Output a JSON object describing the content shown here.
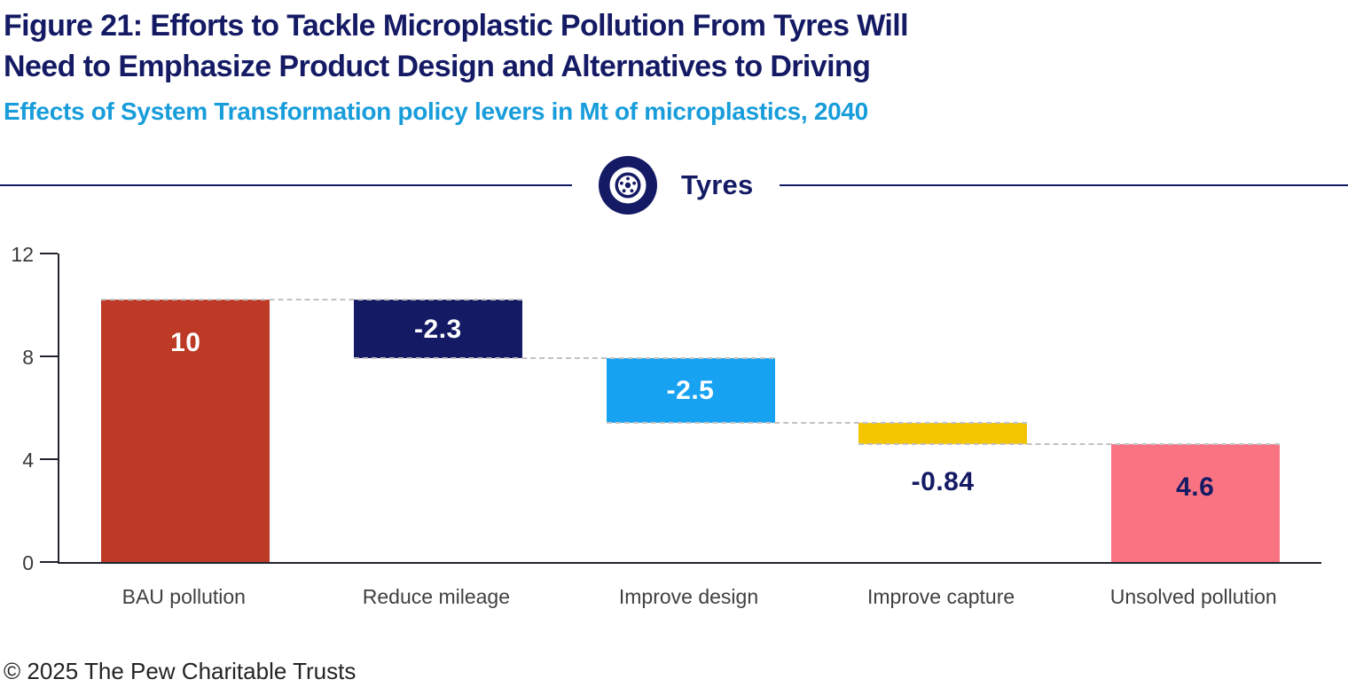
{
  "figure": {
    "title_line1": "Figure 21: Efforts to Tackle Microplastic Pollution From Tyres Will",
    "title_line2": "Need to Emphasize Product Design and Alternatives to Driving",
    "subtitle": "Effects of System Transformation policy levers in Mt of microplastics, 2040",
    "divider_label": "Tyres",
    "footer": "© 2025 The Pew Charitable Trusts"
  },
  "colors": {
    "navy": "#141a64",
    "subtitle_blue": "#189ddb",
    "axis": "#20242c",
    "connector": "#c2c2c2",
    "tick_label": "#3a3a3a",
    "category_label": "#404040",
    "footer_text": "#242424",
    "bar_bau": "#bd3b26",
    "bar_reduce_mileage": "#141a64",
    "bar_improve_design": "#18a3f2",
    "bar_improve_capture": "#f2c500",
    "bar_unsolved": "#fa7383"
  },
  "chart_data": {
    "type": "bar",
    "variant": "waterfall",
    "title": "Effects of System Transformation policy levers in Mt of microplastics, 2040",
    "categories": [
      "BAU pollution",
      "Reduce mileage",
      "Improve design",
      "Improve capture",
      "Unsolved pollution"
    ],
    "values": [
      10,
      -2.3,
      -2.5,
      -0.84,
      4.6
    ],
    "labels": [
      "10",
      "-2.3",
      "-2.5",
      "-0.84",
      "4.6"
    ],
    "segments": [
      {
        "category": "BAU pollution",
        "label": "10",
        "start": 0,
        "end": 10.24,
        "color": "#bd3b26",
        "label_color": "#ffffff",
        "label_placement": "inside-top"
      },
      {
        "category": "Reduce mileage",
        "label": "-2.3",
        "start": 10.24,
        "end": 7.94,
        "color": "#141a64",
        "label_color": "#ffffff",
        "label_placement": "inside-center"
      },
      {
        "category": "Improve design",
        "label": "-2.5",
        "start": 7.94,
        "end": 5.44,
        "color": "#18a3f2",
        "label_color": "#ffffff",
        "label_placement": "inside-center"
      },
      {
        "category": "Improve capture",
        "label": "-0.84",
        "start": 5.44,
        "end": 4.6,
        "color": "#f2c500",
        "label_color": "#141a64",
        "label_placement": "below"
      },
      {
        "category": "Unsolved pollution",
        "label": "4.6",
        "start": 0,
        "end": 4.6,
        "color": "#fa7383",
        "label_color": "#141a64",
        "label_placement": "inside-top"
      }
    ],
    "connectors": [
      {
        "from": 0,
        "to": 1,
        "level": 10.24
      },
      {
        "from": 1,
        "to": 2,
        "level": 7.94
      },
      {
        "from": 2,
        "to": 3,
        "level": 5.44
      },
      {
        "from": 3,
        "to": 4,
        "level": 4.6
      }
    ],
    "yticks": [
      0,
      4,
      8,
      12
    ],
    "ylim": [
      0,
      12
    ],
    "xlabel": "",
    "ylabel": "",
    "grid": false,
    "legend": false
  }
}
